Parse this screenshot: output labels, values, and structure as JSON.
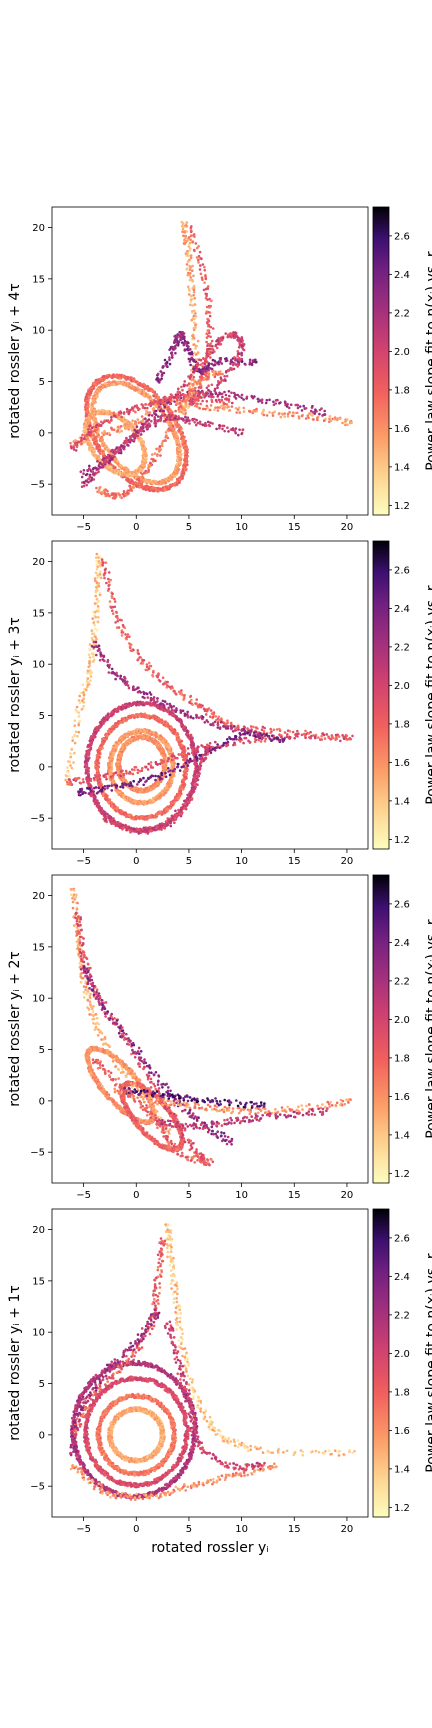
{
  "chart_data": [
    {
      "type": "scatter",
      "ylabel": "rotated rossler yᵢ + 4τ",
      "xlabel": "",
      "xlim": [
        -8,
        22
      ],
      "ylim": [
        -8,
        22
      ],
      "xticks": [
        -5,
        0,
        5,
        10,
        15,
        20
      ],
      "yticks": [
        -5,
        0,
        5,
        10,
        15,
        20
      ],
      "colorbar": {
        "label": "Power law slope fit to n(xᵢ) vs. r",
        "range": [
          1.15,
          2.75
        ],
        "ticks": [
          1.2,
          1.4,
          1.6,
          1.8,
          2.0,
          2.2,
          2.4,
          2.6
        ],
        "colormap": "magma_r"
      },
      "curves": [
        {
          "c": 1.6,
          "pts": [
            [
              -6,
              -1
            ],
            [
              -3,
              0
            ],
            [
              0,
              1
            ],
            [
              3,
              3
            ],
            [
              7,
              2.5
            ],
            [
              12,
              2
            ],
            [
              17,
              1.5
            ],
            [
              20.5,
              1
            ]
          ]
        },
        {
          "c": 2.2,
          "pts": [
            [
              -5,
              -4
            ],
            [
              -2,
              -2
            ],
            [
              1,
              1
            ],
            [
              4,
              3.5
            ],
            [
              8,
              3.8
            ],
            [
              13,
              3
            ],
            [
              18,
              2
            ]
          ]
        },
        {
          "c": 1.9,
          "pts": [
            [
              -6,
              -1.5
            ],
            [
              -4,
              0.5
            ],
            [
              -1,
              2
            ],
            [
              2,
              3
            ],
            [
              5,
              3.5
            ],
            [
              9,
              3
            ]
          ]
        },
        {
          "c": 1.5,
          "pts": [
            [
              4.5,
              20.5
            ],
            [
              5,
              17
            ],
            [
              5.3,
              13
            ],
            [
              5.6,
              8
            ],
            [
              5.2,
              4
            ],
            [
              4.5,
              2
            ]
          ]
        },
        {
          "c": 1.8,
          "pts": [
            [
              5,
              20
            ],
            [
              6.5,
              15
            ],
            [
              7,
              10
            ],
            [
              6.5,
              6
            ],
            [
              5.5,
              3
            ]
          ]
        },
        {
          "c": 2.3,
          "pts": [
            [
              2,
              5
            ],
            [
              3.5,
              8
            ],
            [
              4.2,
              9.6
            ],
            [
              5,
              8
            ],
            [
              6,
              6
            ],
            [
              8,
              7
            ],
            [
              11.5,
              6.8
            ]
          ]
        },
        {
          "c": 2.0,
          "pts": [
            [
              3,
              3
            ],
            [
              6,
              6.5
            ],
            [
              8,
              9
            ],
            [
              9.5,
              9.5
            ],
            [
              10,
              8
            ],
            [
              8,
              5
            ],
            [
              5,
              3
            ]
          ]
        },
        {
          "c": 1.7,
          "pts": [
            [
              -3.5,
              -5.5
            ],
            [
              -2,
              -6.2
            ],
            [
              0,
              -5
            ],
            [
              2,
              -2
            ],
            [
              4,
              2
            ],
            [
              6,
              5
            ],
            [
              8,
              6
            ]
          ]
        },
        {
          "c": 2.1,
          "pts": [
            [
              -5,
              -5
            ],
            [
              -3,
              -3
            ],
            [
              -1,
              -1
            ],
            [
              1,
              0.5
            ],
            [
              3,
              1.5
            ],
            [
              6,
              1
            ],
            [
              10,
              0
            ]
          ]
        }
      ],
      "loops": [
        {
          "cx": 0,
          "cy": 0,
          "rx": 3.2,
          "ry": 5.5,
          "rot": 35,
          "c": 1.55
        },
        {
          "cx": 0,
          "cy": 0,
          "rx": 3.8,
          "ry": 6.2,
          "rot": 35,
          "c": 1.75
        },
        {
          "cx": -2,
          "cy": -1,
          "rx": 2.2,
          "ry": 3.5,
          "rot": 40,
          "c": 1.5
        }
      ]
    },
    {
      "type": "scatter",
      "ylabel": "rotated rossler yᵢ + 3τ",
      "xlabel": "",
      "xlim": [
        -8,
        22
      ],
      "ylim": [
        -8,
        22
      ],
      "xticks": [
        -5,
        0,
        5,
        10,
        15,
        20
      ],
      "yticks": [
        -5,
        0,
        5,
        10,
        15,
        20
      ],
      "colorbar": {
        "label": "Power law slope fit to n(xᵢ) vs. r",
        "range": [
          1.15,
          2.75
        ],
        "ticks": [
          1.2,
          1.4,
          1.6,
          1.8,
          2.0,
          2.2,
          2.4,
          2.6
        ],
        "colormap": "magma_r"
      },
      "curves": [
        {
          "c": 1.4,
          "pts": [
            [
              -3.5,
              20.5
            ],
            [
              -3.7,
              17
            ],
            [
              -4,
              13
            ],
            [
              -4.5,
              9
            ],
            [
              -5.5,
              5
            ],
            [
              -6.5,
              -1.5
            ]
          ]
        },
        {
          "c": 1.8,
          "pts": [
            [
              -3,
              20
            ],
            [
              -2,
              15
            ],
            [
              0,
              11
            ],
            [
              3,
              8
            ],
            [
              6,
              6
            ],
            [
              9,
              4
            ],
            [
              13,
              3.5
            ],
            [
              20.5,
              2.8
            ]
          ]
        },
        {
          "c": 2.2,
          "pts": [
            [
              -4,
              12
            ],
            [
              -2,
              9
            ],
            [
              1,
              7
            ],
            [
              4,
              5.5
            ],
            [
              8,
              4
            ],
            [
              12,
              3
            ]
          ]
        },
        {
          "c": 1.9,
          "pts": [
            [
              -6.5,
              -1.5
            ],
            [
              -3,
              -1
            ],
            [
              1,
              0
            ],
            [
              5,
              1.5
            ],
            [
              10,
              2.5
            ],
            [
              15,
              3
            ],
            [
              20,
              2.8
            ]
          ]
        },
        {
          "c": 2.4,
          "pts": [
            [
              -5.5,
              -2.5
            ],
            [
              -2,
              -2
            ],
            [
              2,
              -1
            ],
            [
              6,
              1
            ],
            [
              10,
              3
            ],
            [
              14,
              2.5
            ]
          ]
        },
        {
          "c": 2.0,
          "pts": [
            [
              -3,
              -5
            ],
            [
              0,
              -6.2
            ],
            [
              3,
              -5.5
            ],
            [
              5,
              -3
            ],
            [
              6,
              0
            ],
            [
              7,
              2
            ]
          ]
        }
      ],
      "loops": [
        {
          "cx": 0.5,
          "cy": 0,
          "rx": 3.0,
          "ry": 3.5,
          "rot": 0,
          "c": 1.55
        },
        {
          "cx": 0.5,
          "cy": 0,
          "rx": 4.2,
          "ry": 5.0,
          "rot": 0,
          "c": 1.75
        },
        {
          "cx": 0.5,
          "cy": 0,
          "rx": 5.2,
          "ry": 6.2,
          "rot": 0,
          "c": 2.05
        },
        {
          "cx": 0.5,
          "cy": 0.3,
          "rx": 2.2,
          "ry": 2.6,
          "rot": 0,
          "c": 1.6
        }
      ]
    },
    {
      "type": "scatter",
      "ylabel": "rotated rossler yᵢ + 2τ",
      "xlabel": "",
      "xlim": [
        -8,
        22
      ],
      "ylim": [
        -8,
        22
      ],
      "xticks": [
        -5,
        0,
        5,
        10,
        15,
        20
      ],
      "yticks": [
        -5,
        0,
        5,
        10,
        15,
        20
      ],
      "colorbar": {
        "label": "Power law slope fit to n(xᵢ) vs. r",
        "range": [
          1.15,
          2.75
        ],
        "ticks": [
          1.2,
          1.4,
          1.6,
          1.8,
          2.0,
          2.2,
          2.4,
          2.6
        ],
        "colormap": "magma_r"
      },
      "curves": [
        {
          "c": 1.5,
          "pts": [
            [
              -6,
              20.5
            ],
            [
              -5.5,
              16
            ],
            [
              -5,
              12
            ],
            [
              -4,
              8
            ],
            [
              -2,
              4
            ],
            [
              1,
              0
            ],
            [
              3,
              -3
            ]
          ]
        },
        {
          "c": 1.9,
          "pts": [
            [
              -5.5,
              18
            ],
            [
              -5,
              14
            ],
            [
              -3.5,
              10
            ],
            [
              -1,
              6
            ],
            [
              2,
              1
            ],
            [
              5,
              -4
            ],
            [
              6.5,
              -6
            ]
          ]
        },
        {
          "c": 2.3,
          "pts": [
            [
              -5,
              13
            ],
            [
              -3,
              9
            ],
            [
              0,
              5
            ],
            [
              3,
              1
            ],
            [
              6,
              -2
            ],
            [
              9,
              -4
            ]
          ]
        },
        {
          "c": 1.6,
          "pts": [
            [
              -2,
              1
            ],
            [
              2,
              0
            ],
            [
              6,
              -0.5
            ],
            [
              10,
              -1
            ],
            [
              15,
              -0.8
            ],
            [
              20.5,
              0
            ]
          ]
        },
        {
          "c": 2.5,
          "pts": [
            [
              -1,
              1
            ],
            [
              3,
              0.5
            ],
            [
              7,
              0
            ],
            [
              12,
              -0.5
            ]
          ]
        },
        {
          "c": 2.1,
          "pts": [
            [
              2,
              -2
            ],
            [
              5,
              -2.5
            ],
            [
              9,
              -2
            ],
            [
              13,
              -1.5
            ],
            [
              18,
              -1
            ]
          ]
        },
        {
          "c": 1.8,
          "pts": [
            [
              -4,
              4
            ],
            [
              -1,
              1
            ],
            [
              2,
              -2
            ],
            [
              4,
              -5
            ],
            [
              7,
              -6
            ]
          ]
        }
      ],
      "loops": [
        {
          "cx": -1.5,
          "cy": 1.5,
          "rx": 1.6,
          "ry": 4.5,
          "rot": 40,
          "c": 1.6
        },
        {
          "cx": 1.5,
          "cy": -1.5,
          "rx": 1.6,
          "ry": 4.0,
          "rot": 40,
          "c": 1.8
        }
      ]
    },
    {
      "type": "scatter",
      "ylabel": "rotated rossler yᵢ + 1τ",
      "xlabel": "rotated rossler yᵢ",
      "xlim": [
        -8,
        22
      ],
      "ylim": [
        -8,
        22
      ],
      "xticks": [
        -5,
        0,
        5,
        10,
        15,
        20
      ],
      "yticks": [
        -5,
        0,
        5,
        10,
        15,
        20
      ],
      "colorbar": {
        "label": "Power law slope fit to n(xᵢ) vs. r",
        "range": [
          1.15,
          2.75
        ],
        "ticks": [
          1.2,
          1.4,
          1.6,
          1.8,
          2.0,
          2.2,
          2.4,
          2.6
        ],
        "colormap": "magma_r"
      },
      "curves": [
        {
          "c": 1.4,
          "pts": [
            [
              3,
              20.5
            ],
            [
              3.3,
              17
            ],
            [
              3.8,
              13
            ],
            [
              4.5,
              8
            ],
            [
              6,
              3
            ],
            [
              8,
              0
            ],
            [
              12,
              -1.5
            ],
            [
              20.5,
              -1.8
            ]
          ]
        },
        {
          "c": 1.8,
          "pts": [
            [
              2.5,
              19
            ],
            [
              2,
              15
            ],
            [
              1.5,
              11
            ],
            [
              -1,
              7
            ],
            [
              -4,
              4
            ],
            [
              -6,
              0
            ]
          ]
        },
        {
          "c": 2.2,
          "pts": [
            [
              2,
              12
            ],
            [
              0,
              9
            ],
            [
              -3,
              6
            ],
            [
              -5.5,
              2
            ],
            [
              -6,
              -2
            ]
          ]
        },
        {
          "c": 1.6,
          "pts": [
            [
              -6,
              -3
            ],
            [
              -3,
              -5.5
            ],
            [
              1,
              -6
            ],
            [
              5,
              -5
            ],
            [
              9,
              -4
            ],
            [
              13,
              -3
            ]
          ]
        },
        {
          "c": 2.0,
          "pts": [
            [
              3,
              11
            ],
            [
              4,
              7
            ],
            [
              5,
              3
            ],
            [
              6,
              -1
            ],
            [
              9,
              -3
            ],
            [
              12,
              -3
            ]
          ]
        }
      ],
      "loops": [
        {
          "cx": 0,
          "cy": 0,
          "rx": 2.5,
          "ry": 2.5,
          "rot": 0,
          "c": 1.5
        },
        {
          "cx": 0,
          "cy": 0,
          "rx": 3.6,
          "ry": 3.8,
          "rot": 0,
          "c": 1.7
        },
        {
          "cx": 0,
          "cy": 0.3,
          "rx": 4.8,
          "ry": 5.2,
          "rot": 0,
          "c": 1.95
        },
        {
          "cx": -0.2,
          "cy": 0.5,
          "rx": 5.8,
          "ry": 6.5,
          "rot": 0,
          "c": 2.15
        }
      ]
    }
  ]
}
